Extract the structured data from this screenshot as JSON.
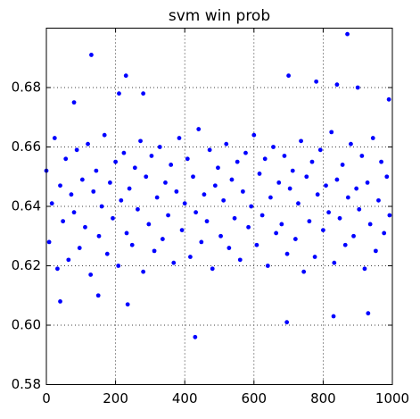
{
  "chart_data": {
    "type": "scatter",
    "title": "svm win prob",
    "color": "#0000ff",
    "grid": true,
    "xlim": [
      0,
      1000
    ],
    "xticks": [
      0,
      200,
      400,
      600,
      800,
      1000
    ],
    "ylim": [
      0.58,
      0.7
    ],
    "yticks": [
      0.58,
      {
        "value": 0.6,
        "label": "0.60"
      },
      0.62,
      0.64,
      0.66,
      0.68
    ],
    "x": [
      0,
      8,
      16,
      24,
      32,
      40,
      48,
      56,
      64,
      72,
      80,
      88,
      96,
      104,
      112,
      120,
      128,
      136,
      144,
      152,
      160,
      168,
      176,
      184,
      192,
      200,
      208,
      216,
      224,
      232,
      240,
      248,
      256,
      264,
      272,
      280,
      288,
      296,
      304,
      312,
      320,
      328,
      336,
      344,
      352,
      360,
      368,
      376,
      384,
      392,
      400,
      408,
      416,
      424,
      432,
      440,
      448,
      456,
      464,
      472,
      480,
      488,
      496,
      504,
      512,
      520,
      528,
      536,
      544,
      552,
      560,
      568,
      576,
      584,
      592,
      600,
      608,
      616,
      624,
      632,
      640,
      648,
      656,
      664,
      672,
      680,
      688,
      696,
      704,
      712,
      720,
      728,
      736,
      744,
      752,
      760,
      768,
      776,
      784,
      792,
      800,
      808,
      816,
      824,
      832,
      840,
      848,
      856,
      864,
      872,
      880,
      888,
      896,
      904,
      912,
      920,
      928,
      936,
      944,
      952,
      960,
      968,
      976,
      984,
      992,
      130,
      870,
      430,
      695,
      235,
      40,
      830,
      930,
      230,
      700,
      780,
      840,
      900,
      280,
      210,
      990,
      150,
      80
    ],
    "values": [
      0.652,
      0.628,
      0.641,
      0.663,
      0.619,
      0.647,
      0.635,
      0.656,
      0.622,
      0.644,
      0.638,
      0.659,
      0.626,
      0.649,
      0.633,
      0.661,
      0.617,
      0.645,
      0.652,
      0.63,
      0.64,
      0.664,
      0.624,
      0.648,
      0.636,
      0.655,
      0.62,
      0.642,
      0.658,
      0.631,
      0.646,
      0.627,
      0.653,
      0.639,
      0.662,
      0.618,
      0.65,
      0.634,
      0.657,
      0.625,
      0.643,
      0.66,
      0.629,
      0.648,
      0.637,
      0.654,
      0.621,
      0.645,
      0.663,
      0.632,
      0.641,
      0.656,
      0.623,
      0.65,
      0.638,
      0.666,
      0.628,
      0.644,
      0.635,
      0.659,
      0.619,
      0.647,
      0.653,
      0.63,
      0.642,
      0.661,
      0.626,
      0.649,
      0.636,
      0.655,
      0.622,
      0.645,
      0.658,
      0.633,
      0.64,
      0.664,
      0.627,
      0.651,
      0.637,
      0.656,
      0.62,
      0.643,
      0.66,
      0.631,
      0.648,
      0.634,
      0.657,
      0.624,
      0.646,
      0.652,
      0.629,
      0.641,
      0.662,
      0.618,
      0.65,
      0.635,
      0.655,
      0.623,
      0.644,
      0.659,
      0.632,
      0.647,
      0.638,
      0.665,
      0.621,
      0.649,
      0.636,
      0.654,
      0.627,
      0.643,
      0.661,
      0.63,
      0.646,
      0.639,
      0.657,
      0.619,
      0.648,
      0.634,
      0.663,
      0.625,
      0.642,
      0.655,
      0.631,
      0.65,
      0.637,
      0.691,
      0.698,
      0.596,
      0.601,
      0.607,
      0.608,
      0.603,
      0.604,
      0.684,
      0.684,
      0.682,
      0.681,
      0.68,
      0.678,
      0.678,
      0.676,
      0.61,
      0.675
    ]
  }
}
